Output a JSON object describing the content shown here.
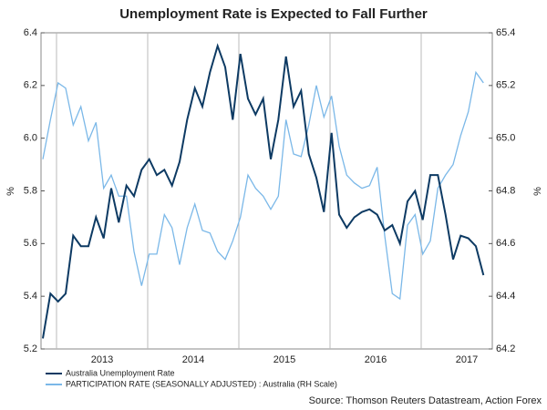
{
  "chart_data": {
    "type": "line",
    "title": "Unemployment Rate is Expected to Fall Further",
    "y_label": "%",
    "y2_label": "%",
    "source": "Source: Thomson Reuters Datastream, Action Forex",
    "x": [
      2012.85,
      2012.933,
      2013.017,
      2013.1,
      2013.183,
      2013.267,
      2013.35,
      2013.433,
      2013.517,
      2013.6,
      2013.683,
      2013.767,
      2013.85,
      2013.933,
      2014.017,
      2014.1,
      2014.183,
      2014.267,
      2014.35,
      2014.433,
      2014.517,
      2014.6,
      2014.683,
      2014.767,
      2014.85,
      2014.933,
      2015.017,
      2015.1,
      2015.183,
      2015.267,
      2015.35,
      2015.433,
      2015.517,
      2015.6,
      2015.683,
      2015.767,
      2015.85,
      2015.933,
      2016.017,
      2016.1,
      2016.183,
      2016.267,
      2016.35,
      2016.433,
      2016.517,
      2016.6,
      2016.683,
      2016.767,
      2016.85,
      2016.933,
      2017.017,
      2017.1,
      2017.183,
      2017.267,
      2017.35,
      2017.433,
      2017.517,
      2017.6,
      2017.683
    ],
    "series": [
      {
        "name": "Australia Unemployment Rate",
        "color": "#0d3a63",
        "axis": "y",
        "values": [
          5.24,
          5.41,
          5.38,
          5.41,
          5.63,
          5.59,
          5.59,
          5.7,
          5.62,
          5.81,
          5.68,
          5.82,
          5.78,
          5.88,
          5.92,
          5.86,
          5.88,
          5.82,
          5.91,
          6.07,
          6.19,
          6.12,
          6.25,
          6.35,
          6.27,
          6.07,
          6.32,
          6.15,
          6.09,
          6.15,
          5.92,
          6.07,
          6.31,
          6.12,
          6.18,
          5.94,
          5.85,
          5.72,
          6.02,
          5.71,
          5.66,
          5.7,
          5.72,
          5.73,
          5.71,
          5.65,
          5.67,
          5.6,
          5.76,
          5.8,
          5.69,
          5.86,
          5.86,
          5.71,
          5.54,
          5.63,
          5.62,
          5.59,
          5.48
        ]
      },
      {
        "name": "PARTICIPATION RATE (SEASONALLY ADJUSTED) : Australia (RH Scale)",
        "color": "#7bb8e8",
        "axis": "y2",
        "values": [
          64.92,
          65.07,
          65.21,
          65.19,
          65.05,
          65.12,
          64.99,
          65.06,
          64.81,
          64.86,
          64.78,
          64.78,
          64.57,
          64.44,
          64.56,
          64.56,
          64.71,
          64.66,
          64.52,
          64.66,
          64.75,
          64.65,
          64.64,
          64.57,
          64.54,
          64.61,
          64.7,
          64.86,
          64.81,
          64.78,
          64.73,
          64.78,
          65.07,
          64.94,
          64.93,
          65.05,
          65.2,
          65.08,
          65.16,
          64.97,
          64.86,
          64.83,
          64.81,
          64.82,
          64.89,
          64.63,
          64.41,
          64.39,
          64.67,
          64.71,
          64.56,
          64.61,
          64.81,
          64.86,
          64.9,
          65.01,
          65.1,
          65.25,
          65.21
        ]
      }
    ],
    "xlim": [
      2012.83,
      2017.78
    ],
    "xticks": [
      2013,
      2014,
      2015,
      2016,
      2017
    ],
    "ylim": [
      5.2,
      6.4
    ],
    "yticks": [
      5.2,
      5.4,
      5.6,
      5.8,
      {
        "value": 6,
        "label": "6.0"
      },
      6.2,
      6.4
    ],
    "y2lim": [
      64.2,
      65.4
    ],
    "y2ticks": [
      64.2,
      64.4,
      64.6,
      64.8,
      {
        "value": 65,
        "label": "65.0"
      },
      65.2,
      65.4
    ],
    "grid": "x",
    "legend": "bottom-left"
  }
}
